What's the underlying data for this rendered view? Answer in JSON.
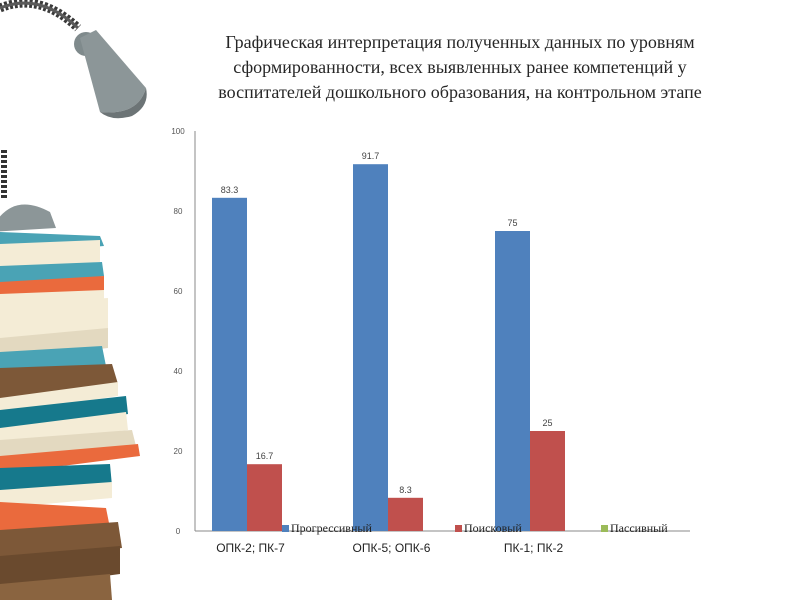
{
  "chart_data": {
    "type": "bar",
    "title": "Графическая интерпретация полученных данных по уровням сформированности, всех выявленных ранее компетенций у воспитателей дошкольного образования, на контрольном этапе",
    "categories": [
      "ОПК-2; ПК-7",
      "ОПК-5; ОПК-6",
      "ПК-1; ПК-2"
    ],
    "series": [
      {
        "name": "Прогрессивный",
        "color": "#4f81bd",
        "values": [
          83.3,
          91.7,
          75
        ],
        "labels": [
          "83.3",
          "91.7",
          "75"
        ]
      },
      {
        "name": "Поисковый",
        "color": "#c0504d",
        "values": [
          16.7,
          8.3,
          25
        ],
        "labels": [
          "16.7",
          "8.3",
          "25"
        ]
      },
      {
        "name": "Пассивный",
        "color": "#9bbb59",
        "values": [
          0,
          0,
          0
        ],
        "labels": [
          "",
          "",
          ""
        ]
      }
    ],
    "ylim": [
      0,
      100
    ],
    "yticks": [
      "0",
      "20",
      "40",
      "60",
      "80",
      "100"
    ],
    "legend": "bottom",
    "grid": false
  },
  "decoration": {
    "lamp_color": "#8c9698",
    "book_colors": [
      "#4aa3b5",
      "#ea6a3d",
      "#f4ecd6",
      "#7d5838",
      "#16798c",
      "#e3d9c0"
    ]
  }
}
